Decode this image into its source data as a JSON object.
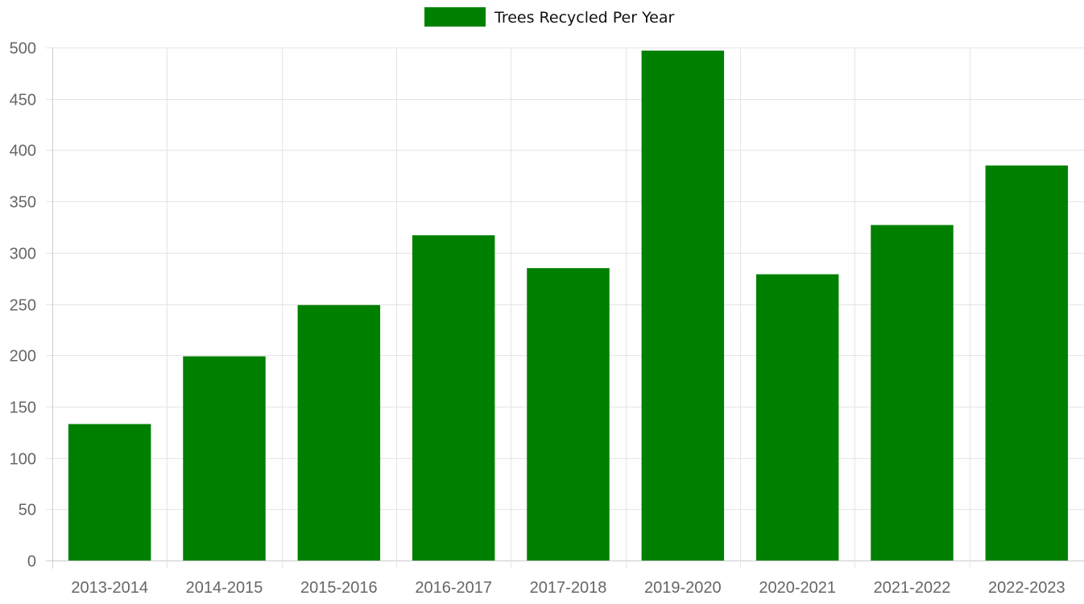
{
  "chart_data": {
    "type": "bar",
    "categories": [
      "2013-2014",
      "2014-2015",
      "2015-2016",
      "2016-2017",
      "2017-2018",
      "2019-2020",
      "2020-2021",
      "2021-2022",
      "2022-2023"
    ],
    "series": [
      {
        "name": "Trees Recycled Per Year",
        "color": "#008000",
        "values": [
          133,
          199,
          249,
          317,
          285,
          497,
          279,
          327,
          385
        ]
      }
    ],
    "ylim": [
      0,
      500
    ],
    "yticks": [
      "0",
      "50",
      "100",
      "150",
      "200",
      "250",
      "300",
      "350",
      "400",
      "450",
      "500"
    ],
    "grid": true,
    "legend_position": "top-center"
  }
}
